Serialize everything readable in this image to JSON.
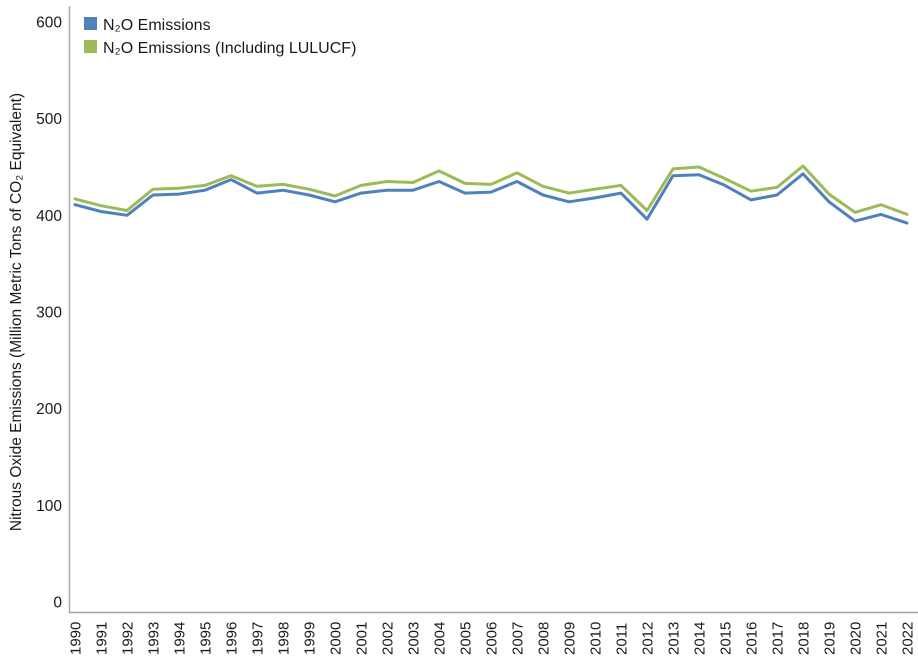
{
  "chart_data": {
    "type": "line",
    "title": "",
    "xlabel": "",
    "ylabel": "Nitrous Oxide Emissions (Million Metric Tons of CO₂ Equivalent)",
    "x": [
      1990,
      1991,
      1992,
      1993,
      1994,
      1995,
      1996,
      1997,
      1998,
      1999,
      2000,
      2001,
      2002,
      2003,
      2004,
      2005,
      2006,
      2007,
      2008,
      2009,
      2010,
      2011,
      2012,
      2013,
      2014,
      2015,
      2016,
      2017,
      2018,
      2019,
      2020,
      2021,
      2022
    ],
    "series": [
      {
        "name": "N₂O Emissions",
        "color": "#4F81BC",
        "values": [
          411,
          404,
          400,
          421,
          422,
          426,
          437,
          423,
          426,
          421,
          414,
          423,
          426,
          426,
          435,
          423,
          424,
          435,
          421,
          414,
          418,
          423,
          396,
          441,
          442,
          431,
          416,
          421,
          443,
          414,
          394,
          401,
          392
        ]
      },
      {
        "name": "N₂O Emissions (Including LULUCF)",
        "color": "#9CBB58",
        "values": [
          417,
          410,
          405,
          427,
          428,
          431,
          441,
          430,
          432,
          427,
          420,
          431,
          435,
          434,
          446,
          433,
          432,
          444,
          430,
          423,
          427,
          431,
          405,
          448,
          450,
          438,
          425,
          429,
          451,
          422,
          403,
          411,
          401
        ]
      }
    ],
    "ylim": [
      0,
      600
    ],
    "yticks": [
      0,
      100,
      200,
      300,
      400,
      500,
      600
    ],
    "grid": false,
    "legend_position": "top-left",
    "colors": {
      "axis_line": "#A6A6A6",
      "text": "#1A1A1A",
      "background": "#FFFFFF"
    }
  }
}
